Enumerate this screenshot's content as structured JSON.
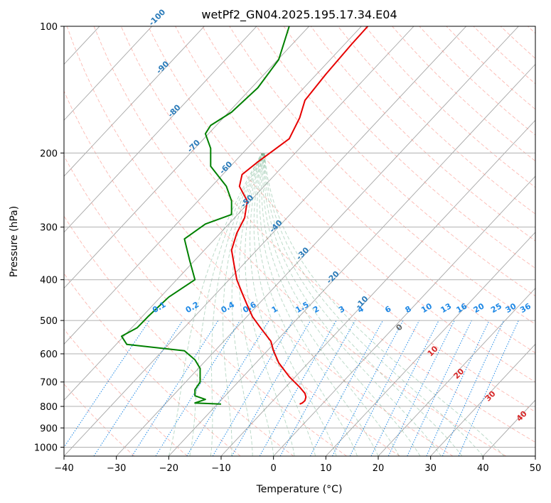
{
  "chart_data": {
    "type": "line",
    "title": "wetPf2_GN04.2025.195.17.34.E04",
    "xlabel": "Temperature (°C)",
    "ylabel": "Pressure (hPa)",
    "xlim": [
      -40,
      50
    ],
    "ylim": [
      1050,
      100
    ],
    "y_scale": "log",
    "grid": true,
    "x_ticks": [
      "−40",
      "−30",
      "−20",
      "−10",
      "0",
      "10",
      "20",
      "30",
      "40",
      "50"
    ],
    "y_ticks": [
      "100",
      "200",
      "300",
      "400",
      "500",
      "600",
      "700",
      "800",
      "900",
      "1000"
    ],
    "skew_lines": {
      "type": "isotherm",
      "color": "#a6a6a6"
    },
    "series": [
      {
        "color": "#e60000",
        "points": [
          [
            5,
            790
          ],
          [
            5.5,
            785
          ],
          [
            6,
            775
          ],
          [
            6.2,
            760
          ],
          [
            6,
            745
          ],
          [
            5,
            720
          ],
          [
            3,
            680
          ],
          [
            1,
            630
          ],
          [
            0,
            590
          ],
          [
            -0.5,
            560
          ],
          [
            -2.5,
            520
          ],
          [
            -4,
            490
          ],
          [
            -5,
            460
          ],
          [
            -6,
            430
          ],
          [
            -7,
            400
          ],
          [
            -7.5,
            370
          ],
          [
            -8,
            340
          ],
          [
            -7,
            310
          ],
          [
            -5.5,
            285
          ],
          [
            -5,
            260
          ],
          [
            -6.5,
            240
          ],
          [
            -6,
            225
          ],
          [
            -3,
            210
          ],
          [
            3,
            185
          ],
          [
            5,
            165
          ],
          [
            6,
            150
          ],
          [
            10,
            130
          ],
          [
            15,
            110
          ],
          [
            18,
            100
          ]
        ]
      },
      {
        "color": "#008000",
        "points": [
          [
            -10,
            790
          ],
          [
            -15,
            785
          ],
          [
            -13,
            770
          ],
          [
            -15,
            755
          ],
          [
            -15,
            730
          ],
          [
            -14,
            700
          ],
          [
            -14,
            650
          ],
          [
            -15,
            620
          ],
          [
            -17,
            590
          ],
          [
            -28,
            570
          ],
          [
            -29,
            545
          ],
          [
            -26,
            520
          ],
          [
            -24,
            490
          ],
          [
            -20,
            440
          ],
          [
            -15,
            400
          ],
          [
            -16,
            360
          ],
          [
            -17,
            320
          ],
          [
            -13,
            295
          ],
          [
            -8,
            280
          ],
          [
            -8,
            260
          ],
          [
            -9,
            240
          ],
          [
            -12,
            215
          ],
          [
            -12,
            195
          ],
          [
            -13,
            180
          ],
          [
            -12,
            172
          ],
          [
            -8,
            160
          ],
          [
            -3,
            140
          ],
          [
            1,
            120
          ],
          [
            3,
            100
          ]
        ]
      }
    ],
    "dry_adiabats": {
      "color": "#fa8072",
      "labels": [
        {
          "text": "-100",
          "T": -100,
          "p": 100
        },
        {
          "text": "-90",
          "T": -90,
          "p": 130
        },
        {
          "text": "-80",
          "T": -80,
          "p": 165
        },
        {
          "text": "-70",
          "T": -70,
          "p": 200
        },
        {
          "text": "-60",
          "T": -60,
          "p": 225
        },
        {
          "text": "-50",
          "T": -50,
          "p": 270
        },
        {
          "text": "-40",
          "T": -40,
          "p": 310
        },
        {
          "text": "-30",
          "T": -30,
          "p": 360
        },
        {
          "text": "-20",
          "T": -20,
          "p": 410
        },
        {
          "text": "-10",
          "T": -10,
          "p": 470
        }
      ]
    },
    "moist_adiabats": {
      "color": "#2e8b57",
      "labels": [
        {
          "text": "0",
          "T": 24,
          "p": 530
        },
        {
          "text": "10",
          "T": 30,
          "p": 610
        },
        {
          "text": "20",
          "T": 35,
          "p": 690
        },
        {
          "text": "30",
          "T": 41,
          "p": 780
        },
        {
          "text": "40",
          "T": 47,
          "p": 870
        }
      ]
    },
    "mixing_ratio": {
      "color": "#1e88e5",
      "label_pressure": 480,
      "labels": [
        "0.1",
        "0.2",
        "0.4",
        "0.6",
        "1",
        "1.5",
        "2",
        "3",
        "4",
        "6",
        "8",
        "10",
        "13",
        "16",
        "20",
        "25",
        "30",
        "36"
      ]
    }
  }
}
